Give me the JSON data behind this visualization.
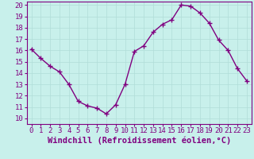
{
  "x": [
    0,
    1,
    2,
    3,
    4,
    5,
    6,
    7,
    8,
    9,
    10,
    11,
    12,
    13,
    14,
    15,
    16,
    17,
    18,
    19,
    20,
    21,
    22,
    23
  ],
  "y": [
    16.1,
    15.3,
    14.6,
    14.1,
    13.0,
    11.5,
    11.1,
    10.9,
    10.4,
    11.2,
    13.0,
    15.9,
    16.4,
    17.6,
    18.3,
    18.7,
    20.0,
    19.9,
    19.3,
    18.4,
    16.9,
    16.0,
    14.4,
    13.3
  ],
  "line_color": "#800080",
  "marker_color": "#800080",
  "bg_color": "#c8f0eb",
  "grid_color": "#b0ddd8",
  "xlabel": "Windchill (Refroidissement éolien,°C)",
  "ylim": [
    10,
    20
  ],
  "xlim": [
    -0.5,
    23.5
  ],
  "yticks": [
    10,
    11,
    12,
    13,
    14,
    15,
    16,
    17,
    18,
    19,
    20
  ],
  "xticks": [
    0,
    1,
    2,
    3,
    4,
    5,
    6,
    7,
    8,
    9,
    10,
    11,
    12,
    13,
    14,
    15,
    16,
    17,
    18,
    19,
    20,
    21,
    22,
    23
  ],
  "axis_color": "#800080",
  "tick_color": "#800080",
  "xlabel_color": "#800080",
  "xlabel_fontsize": 7.5,
  "tick_fontsize": 6.5,
  "line_width": 1.0,
  "marker_size": 2.5
}
